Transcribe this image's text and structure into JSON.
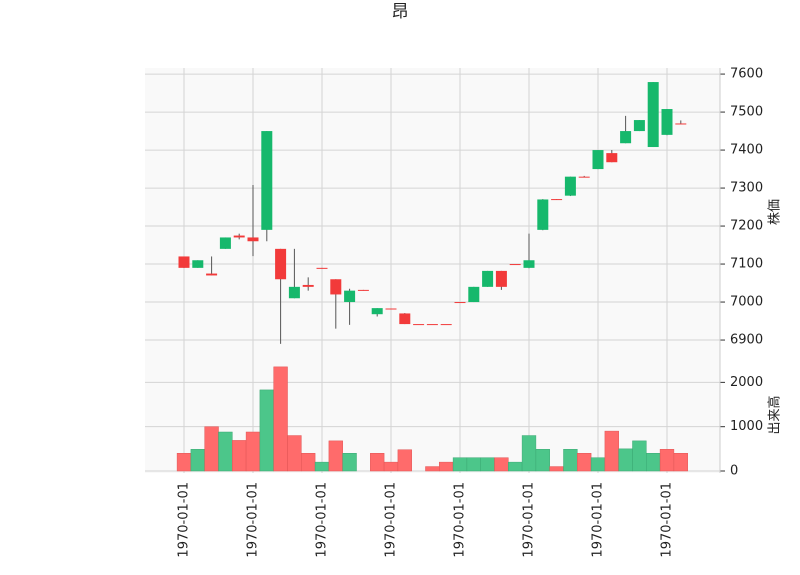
{
  "chart_data": {
    "type": "candlestick",
    "title": "昂",
    "price_axis_label": "株価",
    "volume_axis_label": "出来高",
    "categories": [
      "1970-01-01",
      null,
      null,
      null,
      null,
      "1970-01-01",
      null,
      null,
      null,
      null,
      "1970-01-01",
      null,
      null,
      null,
      null,
      "1970-01-01",
      null,
      null,
      null,
      null,
      "1970-01-01",
      null,
      null,
      null,
      null,
      "1970-01-01",
      null,
      null,
      null,
      null,
      "1970-01-01",
      null,
      null,
      null,
      null,
      "1970-01-01",
      null
    ],
    "open": [
      7120,
      7090,
      7075,
      7140,
      7175,
      7170,
      7190,
      7140,
      7010,
      7045,
      7090,
      7060,
      7000,
      7032,
      6968,
      6983,
      6970,
      6942,
      6942,
      6942,
      7000,
      7000,
      7040,
      7082,
      7100,
      7090,
      7190,
      7271,
      7280,
      7330,
      7350,
      7392,
      7418,
      7450,
      7408,
      7440,
      7470
    ],
    "high": [
      7120,
      7110,
      7120,
      7170,
      7180,
      7308,
      7450,
      7140,
      7140,
      7065,
      7090,
      7060,
      7035,
      7032,
      6984,
      6983,
      6971,
      6942,
      6942,
      6942,
      7000,
      7040,
      7082,
      7082,
      7100,
      7180,
      7271,
      7271,
      7330,
      7332,
      7400,
      7400,
      7490,
      7479,
      7579,
      7508,
      7478
    ],
    "low": [
      7090,
      7090,
      7070,
      7140,
      7165,
      7121,
      7160,
      6890,
      7010,
      7030,
      7088,
      6930,
      6940,
      7030,
      6962,
      6981,
      6942,
      6942,
      6942,
      6942,
      7000,
      7000,
      7040,
      7032,
      7100,
      7089,
      7189,
      7270,
      7279,
      7328,
      7350,
      7368,
      7418,
      7450,
      7408,
      7439,
      7468
    ],
    "close": [
      7090,
      7110,
      7070,
      7170,
      7170,
      7160,
      7450,
      7060,
      7040,
      7040,
      7089,
      7020,
      7030,
      7030,
      6984,
      6981,
      6942,
      6942,
      6942,
      6942,
      7000,
      7040,
      7082,
      7040,
      7100,
      7110,
      7270,
      7270,
      7330,
      7328,
      7400,
      7368,
      7450,
      7479,
      7579,
      7508,
      7468
    ],
    "volume": [
      400,
      490,
      1000,
      880,
      690,
      880,
      1830,
      2350,
      800,
      400,
      200,
      680,
      400,
      0,
      400,
      200,
      480,
      0,
      100,
      200,
      300,
      300,
      300,
      300,
      200,
      800,
      490,
      100,
      490,
      400,
      300,
      900,
      500,
      680,
      400,
      490,
      400
    ],
    "up_color": "#16b86c",
    "down_color": "#f23a3a",
    "volume_up_color": "#4cc68a",
    "volume_down_color": "#ff6b6b",
    "wick_color": "#555555",
    "ylim": [
      6858,
      7616
    ],
    "yticks": [
      6900,
      7000,
      7100,
      7200,
      7300,
      7400,
      7500,
      7600
    ],
    "volume_ylim": [
      0,
      2550
    ],
    "volume_yticks": [
      0,
      1000,
      2000
    ],
    "grid": true
  }
}
